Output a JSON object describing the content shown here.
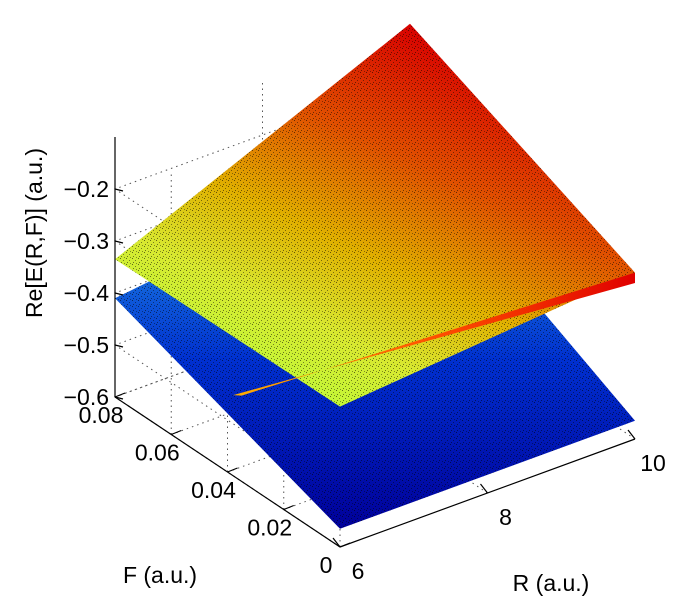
{
  "chart_data": {
    "type": "surface",
    "title": "",
    "xlabel": "R (a.u.)",
    "ylabel": "F (a.u.)",
    "zlabel": "Re[E(R,F)] (a.u.)",
    "x_ticks": [
      "6",
      "8",
      "10"
    ],
    "y_ticks": [
      "0",
      "0.02",
      "0.04",
      "0.06",
      "0.08"
    ],
    "z_ticks": [
      "−0.6",
      "−0.5",
      "−0.4",
      "−0.3",
      "−0.2"
    ],
    "xlim": [
      6,
      10
    ],
    "ylim": [
      0,
      0.08
    ],
    "zlim": [
      -0.6,
      -0.1
    ],
    "grid": true,
    "colormap": [
      "#00008f",
      "#0000ff",
      "#0080ff",
      "#00ffff",
      "#80ff80",
      "#ffff00",
      "#ff8000",
      "#ff0000",
      "#800000"
    ],
    "series": [
      {
        "corners": [
          {
            "R": 6,
            "F": 0,
            "E": -0.565
          },
          {
            "R": 10,
            "F": 0,
            "E": -0.565
          },
          {
            "R": 10,
            "F": 0.08,
            "E": -0.34
          },
          {
            "R": 6,
            "F": 0.08,
            "E": -0.41
          }
        ]
      },
      {
        "corners": [
          {
            "R": 6,
            "F": 0,
            "E": -0.33
          },
          {
            "R": 10,
            "F": 0,
            "E": -0.28
          },
          {
            "R": 10,
            "F": 0.08,
            "E": -0.09
          },
          {
            "R": 6,
            "F": 0.08,
            "E": -0.335
          }
        ]
      }
    ]
  }
}
